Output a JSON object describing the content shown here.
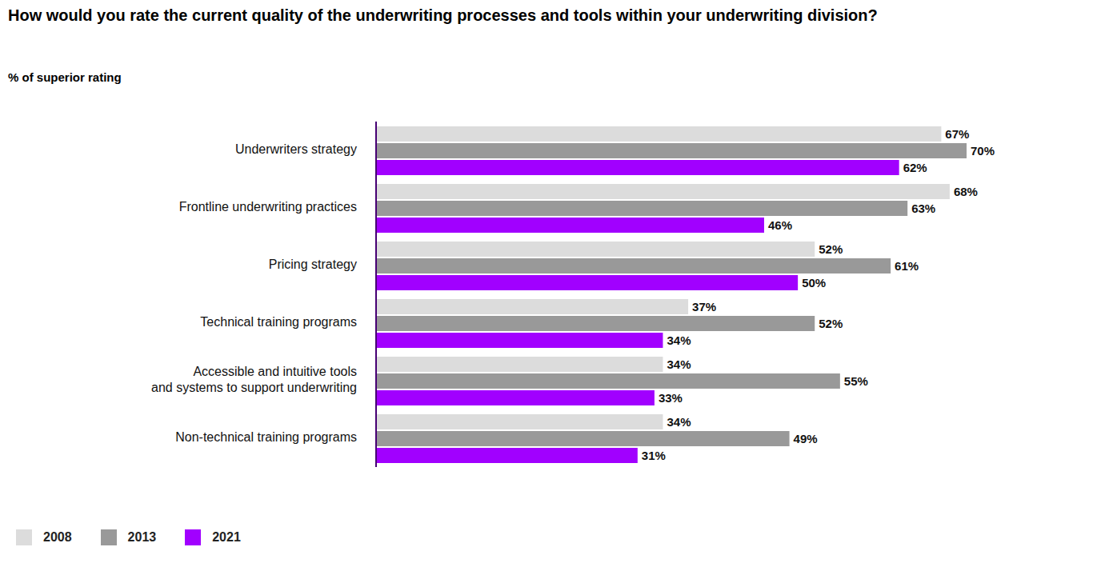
{
  "chart_data": {
    "type": "bar",
    "title": "How would you rate the current quality of the underwriting processes and tools within your underwriting division?",
    "subtitle": "% of superior rating",
    "orientation": "horizontal",
    "categories": [
      "Underwriters strategy",
      "Frontline underwriting practices",
      "Pricing strategy",
      "Technical training programs",
      "Accessible and intuitive tools\nand systems to support underwriting",
      "Non-technical training programs"
    ],
    "series": [
      {
        "name": "2008",
        "color": "#dcdcdc",
        "values": [
          67,
          68,
          52,
          37,
          34,
          34
        ],
        "value_labels": [
          "67%",
          "68%",
          "52%",
          "37%",
          "34%",
          "34%"
        ]
      },
      {
        "name": "2013",
        "color": "#999999",
        "values": [
          70,
          63,
          61,
          52,
          55,
          49
        ],
        "value_labels": [
          "70%",
          "63%",
          "61%",
          "52%",
          "55%",
          "49%"
        ]
      },
      {
        "name": "2021",
        "color": "#a100ff",
        "values": [
          62,
          46,
          50,
          34,
          33,
          31
        ],
        "value_labels": [
          "62%",
          "46%",
          "50%",
          "34%",
          "33%",
          "31%"
        ]
      }
    ],
    "data_labels": true,
    "tick_labels": "y",
    "grid": false,
    "legend": "bottom left"
  }
}
